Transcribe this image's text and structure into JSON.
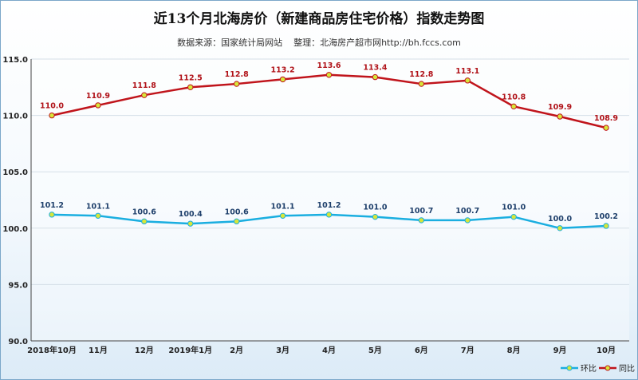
{
  "chart_data": {
    "type": "line",
    "title": "近13个月北海房价（新建商品房住宅价格）指数走势图",
    "subtitle": "数据来源：国家统计局网站    整理：北海房产超市网http://bh.fccs.com",
    "categories": [
      "2018年10月",
      "11月",
      "12月",
      "2019年1月",
      "2月",
      "3月",
      "4月",
      "5月",
      "6月",
      "7月",
      "8月",
      "9月",
      "10月"
    ],
    "ylim": [
      90.0,
      115.0
    ],
    "yticks": [
      "90.0",
      "95.0",
      "100.0",
      "105.0",
      "110.0",
      "115.0"
    ],
    "grid": true,
    "legend_position": "bottom-right",
    "series": [
      {
        "name": "环比",
        "color": "#1aaee0",
        "values": [
          101.2,
          101.1,
          100.6,
          100.4,
          100.6,
          101.1,
          101.2,
          101.0,
          100.7,
          100.7,
          101.0,
          100.0,
          100.2
        ]
      },
      {
        "name": "同比",
        "color": "#c0141b",
        "values": [
          110.0,
          110.9,
          111.8,
          112.5,
          112.8,
          113.2,
          113.6,
          113.4,
          112.8,
          113.1,
          110.8,
          109.9,
          108.9
        ]
      }
    ],
    "marker_color": "#d7e63a"
  }
}
